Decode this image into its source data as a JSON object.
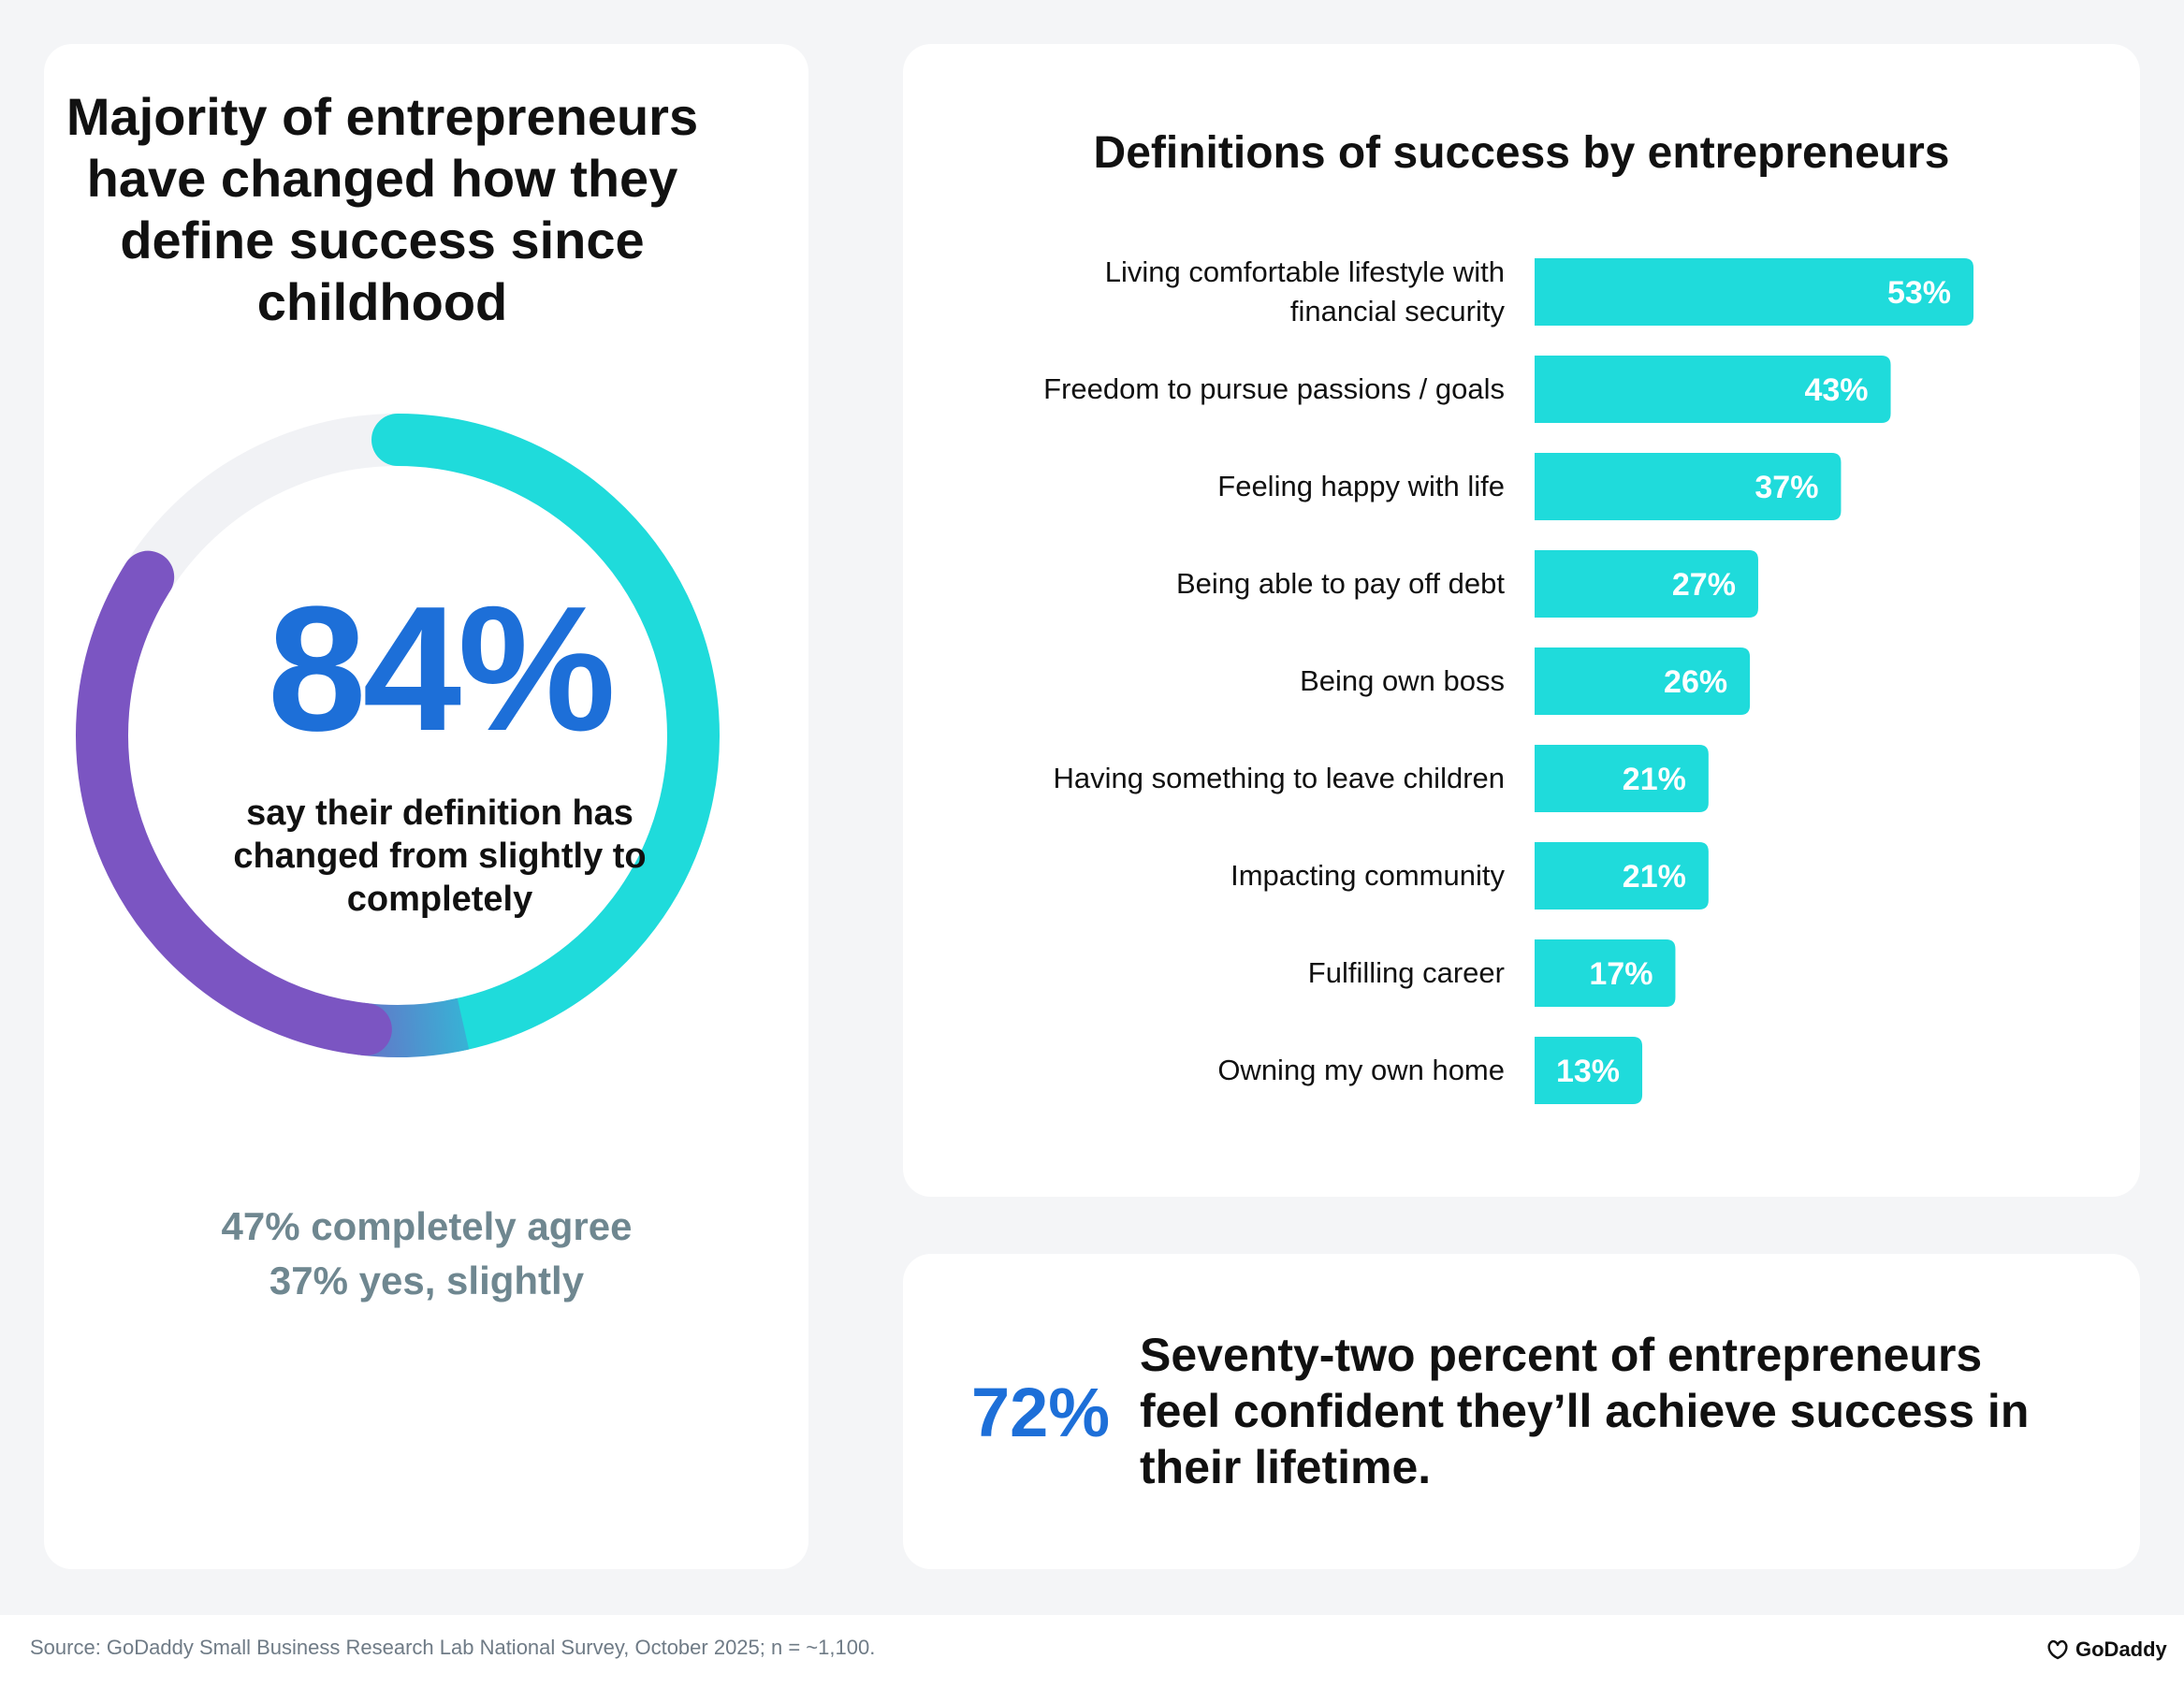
{
  "left_panel": {
    "title": "Majority of entrepreneurs have changed how they define success since childhood",
    "headline_pct": "84%",
    "headline_text": "say their definition has changed from slightly to completely",
    "stats": [
      "47% completely agree",
      "37% yes, slightly"
    ]
  },
  "chart_data": [
    {
      "type": "pie",
      "title": "",
      "values": [
        84,
        16
      ],
      "segments": [
        {
          "label": "47% completely agree",
          "value": 47
        },
        {
          "label": "37% yes, slightly",
          "value": 37
        }
      ],
      "colors": {
        "cyan": "#1fdbdb",
        "purple": "#7b55c2",
        "track": "#f1f2f5"
      }
    },
    {
      "type": "bar",
      "orientation": "horizontal",
      "title": "Definitions of success by entrepreneurs",
      "categories": [
        "Living comfortable lifestyle with financial security",
        "Freedom to pursue passions / goals",
        "Feeling happy with life",
        "Being able to pay off debt",
        "Being own boss",
        "Having something to leave children",
        "Impacting community",
        "Fulfilling career",
        "Owning my own home"
      ],
      "category_lines": [
        [
          "Living comfortable lifestyle with",
          "financial security"
        ],
        [
          "Freedom to pursue passions / goals"
        ],
        [
          "Feeling happy with life"
        ],
        [
          "Being able to pay off debt"
        ],
        [
          "Being own boss"
        ],
        [
          "Having something to leave children"
        ],
        [
          "Impacting community"
        ],
        [
          "Fulfilling career"
        ],
        [
          "Owning my own home"
        ]
      ],
      "values": [
        53,
        43,
        37,
        27,
        26,
        21,
        21,
        17,
        13
      ],
      "value_labels": [
        "53%",
        "43%",
        "37%",
        "27%",
        "26%",
        "21%",
        "21%",
        "17%",
        "13%"
      ],
      "xlim": [
        0,
        100
      ],
      "bar_color": "#1fdbdb"
    }
  ],
  "callout": {
    "pct": "72%",
    "text": "Seventy-two percent of entrepreneurs feel confident they’ll achieve success in their lifetime."
  },
  "footer": {
    "source": "Source: GoDaddy Small Business Research Lab National Survey, October 2025; n = ~1,100.",
    "brand": "GoDaddy"
  }
}
